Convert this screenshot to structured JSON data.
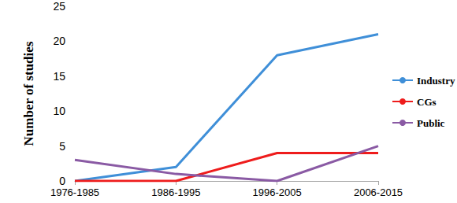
{
  "chart_data": {
    "type": "line",
    "y_label": "Number of studies",
    "categories": [
      "1976-1985",
      "1986-1995",
      "1996-2005",
      "2006-2015"
    ],
    "series": [
      {
        "name": "Industry",
        "color": "#3f8fd8",
        "values": [
          0,
          2,
          18,
          21
        ]
      },
      {
        "name": "CGs",
        "color": "#ee1c1c",
        "values": [
          0,
          0,
          4,
          4
        ]
      },
      {
        "name": "Public",
        "color": "#8a5aa4",
        "values": [
          3,
          1,
          0,
          5
        ]
      }
    ],
    "ylim": [
      0,
      25
    ],
    "yticks": [
      0,
      5,
      10,
      15,
      20,
      25
    ],
    "grid": false,
    "legend": "right",
    "marker": "none"
  }
}
